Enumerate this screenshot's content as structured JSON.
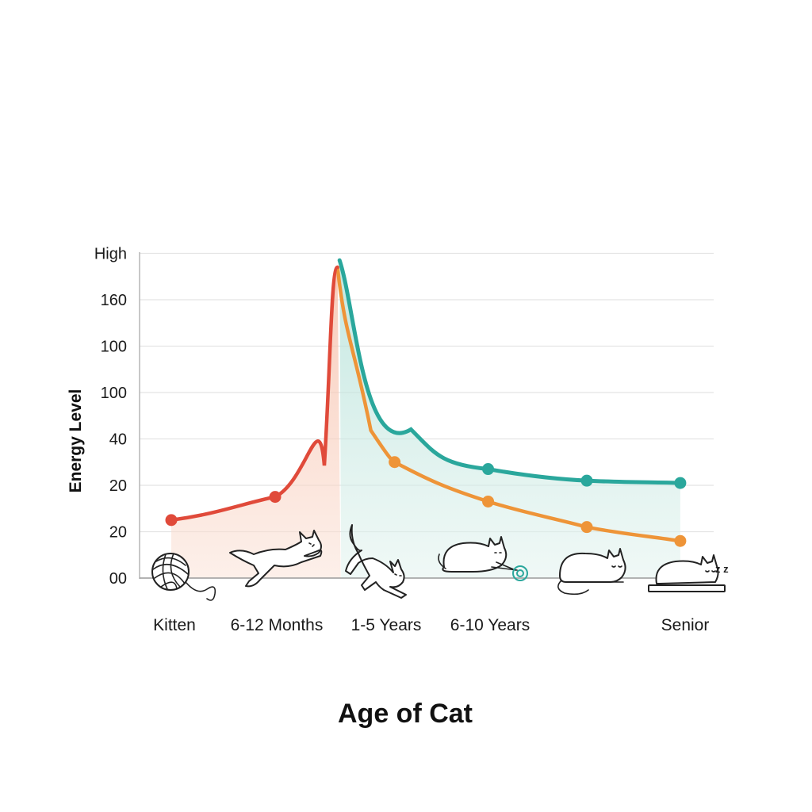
{
  "chart_data": {
    "type": "line",
    "title": "",
    "xlabel": "Age of Cat",
    "ylabel": "Energy Level",
    "y_tick_labels": [
      "00",
      "20",
      "20",
      "40",
      "100",
      "100",
      "160",
      "High"
    ],
    "x_tick_labels": [
      "Kitten",
      "6-12 Months",
      "1-5 Years",
      "6-10 Years",
      "Senior"
    ],
    "grid": true,
    "legend": "none",
    "series": [
      {
        "color": "#e04a3a",
        "points": [
          {
            "x": 0.0,
            "y": 1.25,
            "marker": true
          },
          {
            "x": 1.0,
            "y": 1.75,
            "marker": true
          },
          {
            "x": 1.6,
            "y": 6.7,
            "marker": false
          }
        ]
      },
      {
        "color": "#ee9438",
        "points": [
          {
            "x": 1.6,
            "y": 6.7,
            "marker": false
          },
          {
            "x": 2.15,
            "y": 2.5,
            "marker": true
          },
          {
            "x": 3.05,
            "y": 1.65,
            "marker": true
          },
          {
            "x": 4.0,
            "y": 1.1,
            "marker": true
          },
          {
            "x": 4.9,
            "y": 0.8,
            "marker": true
          }
        ]
      },
      {
        "color": "#2aa79c",
        "points": [
          {
            "x": 1.62,
            "y": 6.85,
            "marker": false
          },
          {
            "x": 3.05,
            "y": 2.35,
            "marker": true
          },
          {
            "x": 4.0,
            "y": 2.1,
            "marker": true
          },
          {
            "x": 4.9,
            "y": 2.05,
            "marker": true
          }
        ]
      }
    ],
    "areas": [
      {
        "color": "#f5c9b8",
        "under": "rising curve"
      },
      {
        "color": "#bfe5dd",
        "under": "teal curve"
      }
    ],
    "illustrations": [
      {
        "icon": "yarn-ball-icon",
        "stage": "Kitten"
      },
      {
        "icon": "leaping-cat-icon",
        "stage": "6-12 Months"
      },
      {
        "icon": "pouncing-cat-icon",
        "stage": "1-5 Years"
      },
      {
        "icon": "cat-with-laser-toy-icon",
        "stage": "6-10 Years"
      },
      {
        "icon": "resting-cat-icon",
        "stage": "6-10 Years to Senior"
      },
      {
        "icon": "sleeping-cat-icon",
        "stage": "Senior",
        "text": "z z"
      }
    ]
  }
}
